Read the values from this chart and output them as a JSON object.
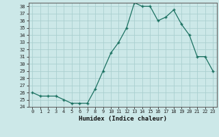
{
  "xlabel": "Humidex (Indice chaleur)",
  "ylabel": "",
  "x": [
    0,
    1,
    2,
    3,
    4,
    5,
    6,
    7,
    8,
    9,
    10,
    11,
    12,
    13,
    14,
    15,
    16,
    17,
    18,
    19,
    20,
    21,
    22,
    23
  ],
  "y": [
    26,
    25.5,
    25.5,
    25.5,
    25,
    24.5,
    24.5,
    24.5,
    26.5,
    29,
    31.5,
    33,
    35,
    38.5,
    38,
    38,
    36,
    36.5,
    37.5,
    35.5,
    34,
    31,
    31,
    29
  ],
  "ylim": [
    24,
    38.5
  ],
  "yticks": [
    24,
    25,
    26,
    27,
    28,
    29,
    30,
    31,
    32,
    33,
    34,
    35,
    36,
    37,
    38
  ],
  "line_color": "#1a7060",
  "marker_color": "#1a7060",
  "bg_color": "#cce8e8",
  "grid_color": "#aacfcf",
  "axis_color": "#666666",
  "figsize": [
    3.2,
    2.0
  ],
  "dpi": 100,
  "tick_fontsize": 5.0,
  "xlabel_fontsize": 6.5
}
